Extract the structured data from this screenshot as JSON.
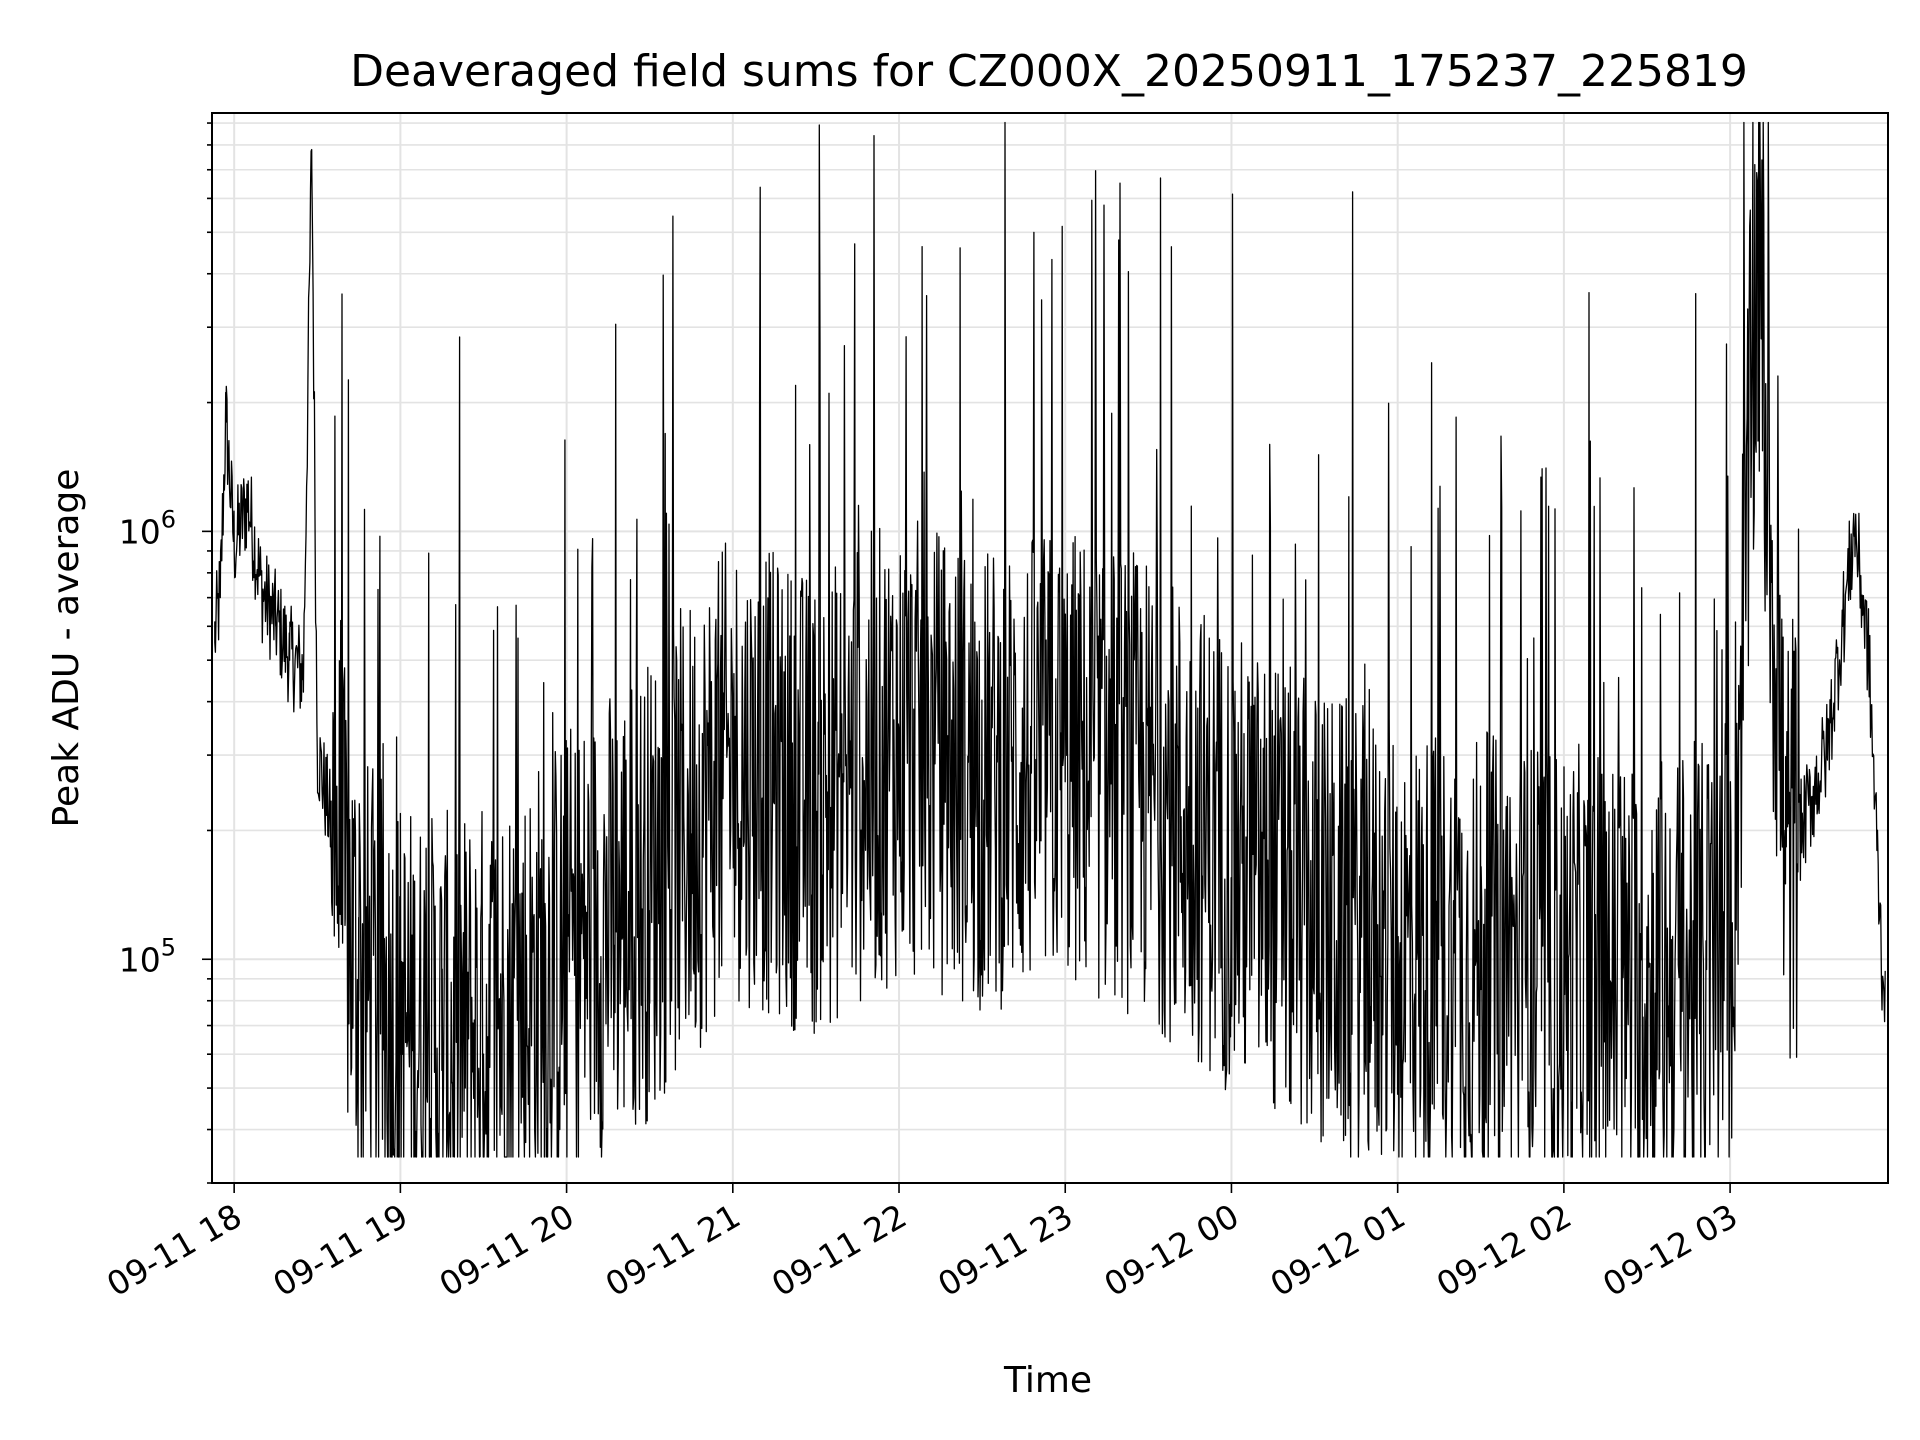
{
  "chart_data": {
    "type": "line",
    "title": "Deaveraged field sums for CZ000X_20250911_175237_225819",
    "xlabel": "Time",
    "ylabel": "Peak ADU - average",
    "yscale": "log",
    "ylim": [
      30000,
      9500000
    ],
    "xlim": [
      "2025-09-11 17:52",
      "2025-09-12 03:57"
    ],
    "grid": true,
    "line_color": "#000000",
    "x_tick_labels": [
      "09-11 18",
      "09-11 19",
      "09-11 20",
      "09-11 21",
      "09-11 22",
      "09-11 23",
      "09-12 00",
      "09-12 01",
      "09-12 02",
      "09-12 03"
    ],
    "y_tick_labels": [
      {
        "value": 100000,
        "base": "10",
        "exp": "5"
      },
      {
        "value": 1000000,
        "base": "10",
        "exp": "6"
      }
    ],
    "series": [
      {
        "values": [
          [
            "2025-09-11 17:53",
            550000
          ],
          [
            "2025-09-11 17:55",
            700000
          ],
          [
            "2025-09-11 17:57",
            1800000
          ],
          [
            "2025-09-11 18:00",
            900000
          ],
          [
            "2025-09-11 18:05",
            1150000
          ],
          [
            "2025-09-11 18:10",
            700000
          ],
          [
            "2025-09-11 18:15",
            600000
          ],
          [
            "2025-09-11 18:20",
            500000
          ],
          [
            "2025-09-11 18:25",
            450000
          ],
          [
            "2025-09-11 18:28",
            7800000
          ],
          [
            "2025-09-11 18:30",
            300000
          ],
          [
            "2025-09-11 18:35",
            200000
          ],
          [
            "2025-09-11 18:40",
            120000
          ],
          [
            "2025-09-11 18:45",
            80000
          ],
          [
            "2025-09-11 19:00",
            60000
          ],
          [
            "2025-09-11 19:15",
            55000
          ],
          [
            "2025-09-11 19:30",
            60000
          ],
          [
            "2025-09-11 19:45",
            70000
          ],
          [
            "2025-09-11 20:00",
            90000
          ],
          [
            "2025-09-11 20:30",
            130000
          ],
          [
            "2025-09-11 21:00",
            250000
          ],
          [
            "2025-09-11 21:30",
            200000
          ],
          [
            "2025-09-11 22:00",
            280000
          ],
          [
            "2025-09-11 22:30",
            230000
          ],
          [
            "2025-09-11 23:00",
            260000
          ],
          [
            "2025-09-11 23:30",
            220000
          ],
          [
            "2025-09-12 00:00",
            150000
          ],
          [
            "2025-09-12 00:30",
            110000
          ],
          [
            "2025-09-12 01:00",
            90000
          ],
          [
            "2025-09-12 01:30",
            85000
          ],
          [
            "2025-09-12 02:00",
            80000
          ],
          [
            "2025-09-12 02:30",
            75000
          ],
          [
            "2025-09-12 03:00",
            85000
          ],
          [
            "2025-09-12 03:10",
            4000000
          ],
          [
            "2025-09-12 03:20",
            150000
          ],
          [
            "2025-09-12 03:35",
            300000
          ],
          [
            "2025-09-12 03:45",
            1000000
          ],
          [
            "2025-09-12 03:50",
            500000
          ],
          [
            "2025-09-12 03:55",
            90000
          ]
        ]
      }
    ]
  }
}
